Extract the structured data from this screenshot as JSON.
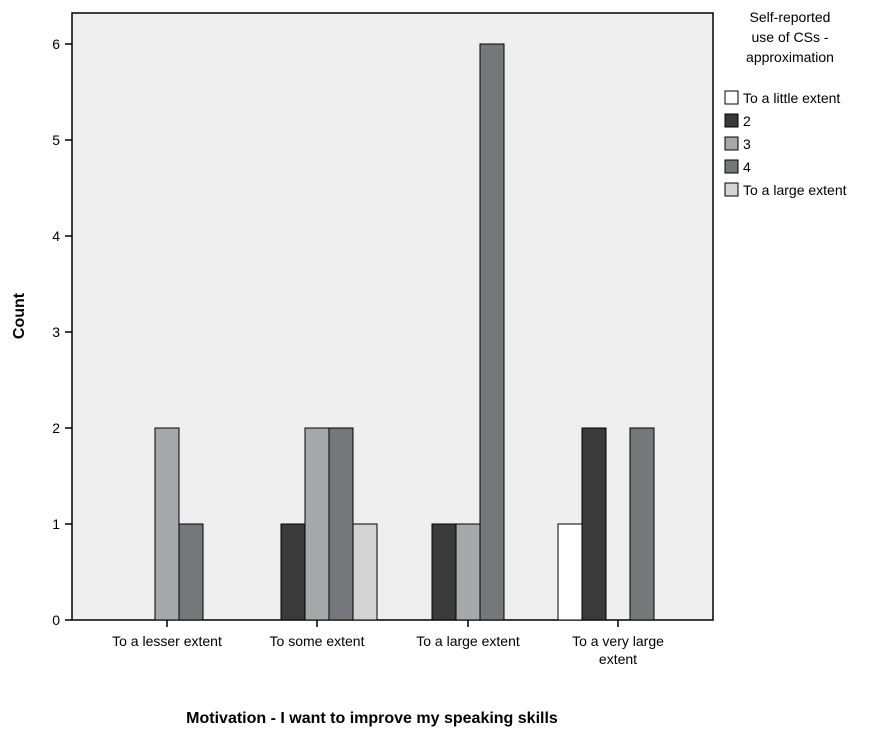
{
  "chart_data": {
    "type": "bar",
    "xlabel": "Motivation - I want to improve my speaking skills",
    "ylabel": "Count",
    "categories": [
      [
        "To a lesser extent"
      ],
      [
        "To some extent"
      ],
      [
        "To a large extent"
      ],
      [
        "To a very large",
        "extent"
      ]
    ],
    "legend_title": [
      "Self-reported",
      "use of CSs -",
      "approximation"
    ],
    "legend_position": "top-right",
    "series": [
      {
        "name": "To a little extent",
        "color": "#ffffff",
        "values": [
          0,
          0,
          0,
          1
        ]
      },
      {
        "name": "2",
        "color": "#3a3a3a",
        "values": [
          0,
          1,
          1,
          2
        ]
      },
      {
        "name": "3",
        "color": "#a7a8ab",
        "values": [
          2,
          2,
          1,
          0
        ]
      },
      {
        "name": "4",
        "color": "#76777b",
        "values": [
          1,
          2,
          6,
          2
        ]
      },
      {
        "name": "To a large extent",
        "color": "#d4d4d4",
        "values": [
          0,
          1,
          0,
          0
        ]
      }
    ],
    "ylim": [
      0,
      6
    ],
    "yticks": [
      0,
      1,
      2,
      3,
      4,
      5,
      6
    ],
    "grid": false,
    "plot_background": "#efeff0"
  }
}
